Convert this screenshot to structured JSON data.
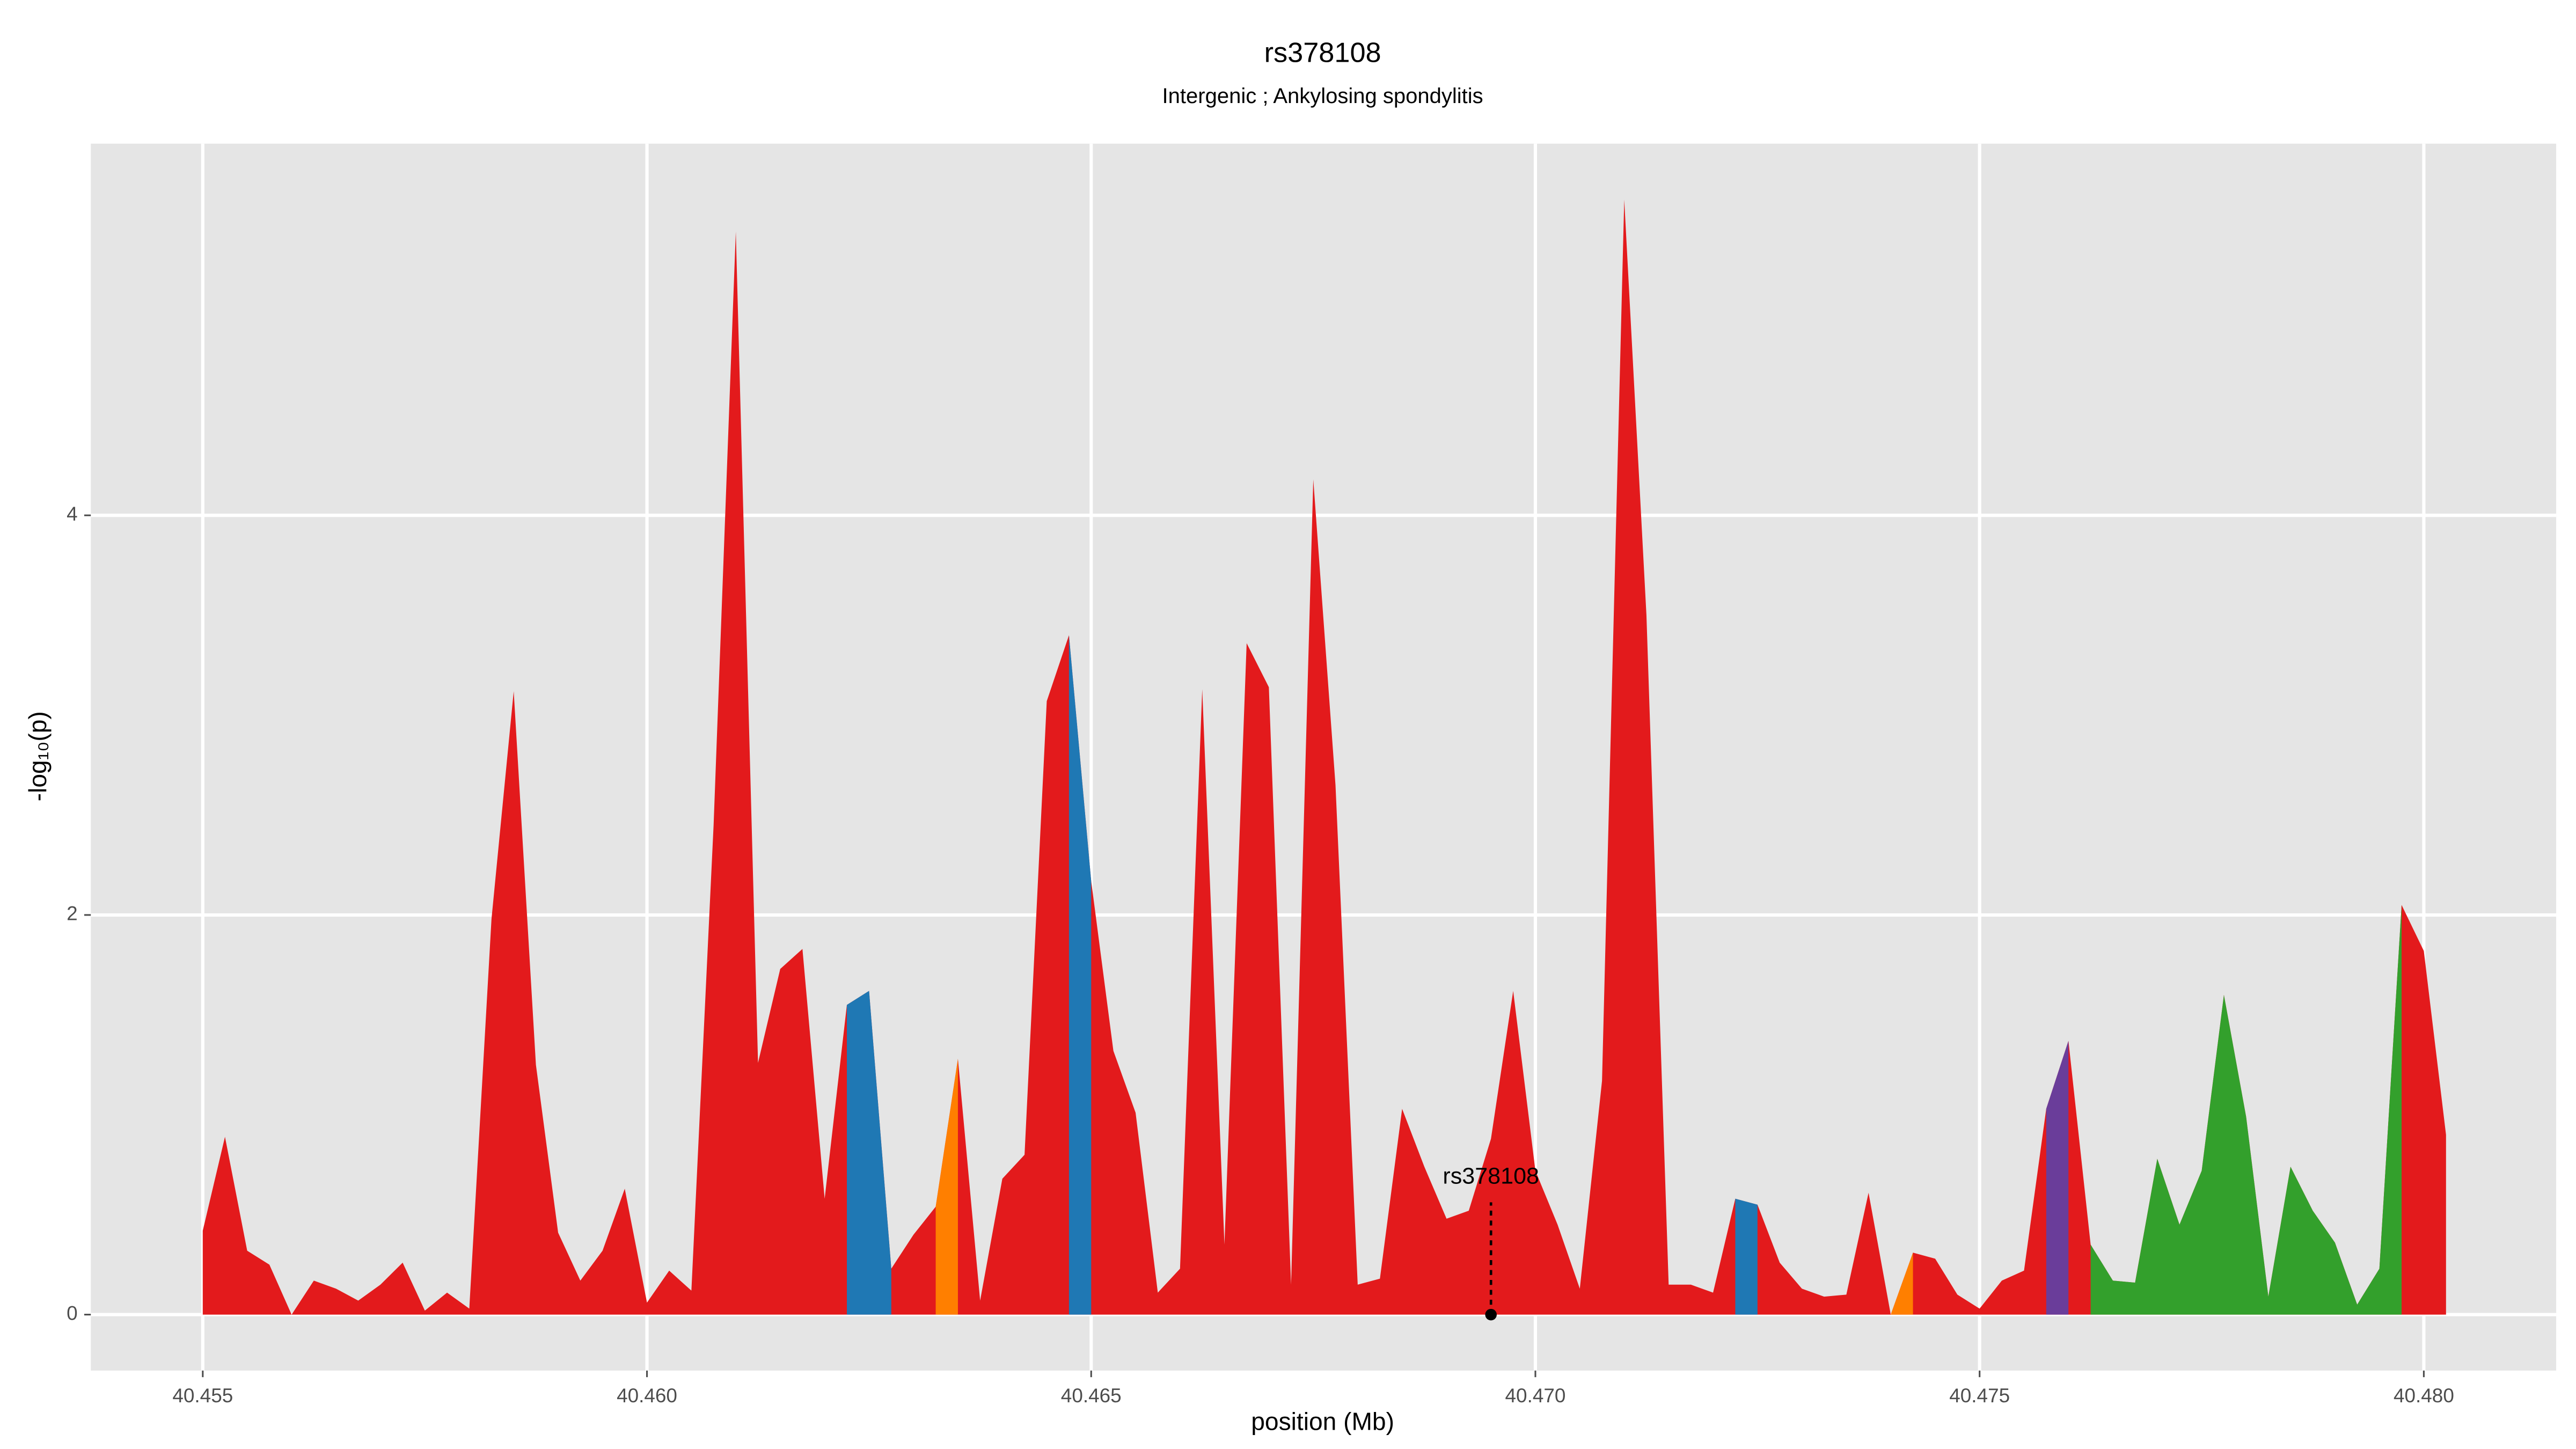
{
  "chart_data": {
    "type": "area",
    "title": "rs378108",
    "subtitle": "Intergenic ; Ankylosing spondylitis",
    "x_label": "position (Mb)",
    "y_label": "-log₁₀(p)",
    "xlim": [
      40.45374,
      40.48149
    ],
    "ylim": [
      -0.28,
      5.86
    ],
    "xticks": [
      40.455,
      {
        "value": 40.46,
        "label": "40.460"
      },
      40.465,
      {
        "value": 40.47,
        "label": "40.470"
      },
      40.475,
      {
        "value": 40.48,
        "label": "40.480"
      }
    ],
    "yticks": [
      0,
      2,
      4
    ],
    "grid": true,
    "x": [
      40.455,
      40.45525,
      40.4555,
      40.45575,
      40.456,
      40.45625,
      40.4565,
      40.45675,
      40.457,
      40.45725,
      40.4575,
      40.45775,
      40.458,
      40.45825,
      40.4585,
      40.45875,
      40.459,
      40.45925,
      40.4595,
      40.45975,
      40.46,
      40.46025,
      40.4605,
      40.46075,
      40.461,
      40.46125,
      40.4615,
      40.46175,
      40.462,
      40.46225,
      40.4625,
      40.46275,
      40.463,
      40.46325,
      40.4635,
      40.46375,
      40.464,
      40.46425,
      40.4645,
      40.46475,
      40.465,
      40.46525,
      40.4655,
      40.46575,
      40.466,
      40.46625,
      40.4665,
      40.46675,
      40.467,
      40.46725,
      40.4675,
      40.46775,
      40.468,
      40.46825,
      40.4685,
      40.46875,
      40.469,
      40.46925,
      40.4695,
      40.46975,
      40.47,
      40.47025,
      40.4705,
      40.47075,
      40.471,
      40.47125,
      40.4715,
      40.47175,
      40.472,
      40.47225,
      40.4725,
      40.47275,
      40.473,
      40.47325,
      40.4735,
      40.47375,
      40.474,
      40.47425,
      40.4745,
      40.47475,
      40.475,
      40.47525,
      40.4755,
      40.47575,
      40.476,
      40.47625,
      40.4765,
      40.47675,
      40.477,
      40.47725,
      40.4775,
      40.47775,
      40.478,
      40.47825,
      40.4785,
      40.47875,
      40.479,
      40.47925,
      40.4795,
      40.47975,
      40.48,
      40.48025
    ],
    "series": [
      {
        "color": "#e31a1c",
        "values": [
          0.42,
          0.89,
          0.32,
          0.25,
          0,
          0.17,
          0.13,
          0.07,
          0.15,
          0.26,
          0.02,
          0.11,
          0.03,
          1.98,
          3.12,
          1.25,
          0.41,
          0.17,
          0.32,
          0.63,
          0.06,
          0.22,
          0.12,
          2.45,
          5.42,
          1.26,
          1.73,
          1.83,
          0.58,
          1.55,
          1.62,
          0.23,
          0.4,
          0.54,
          1.28,
          0.07,
          0.68,
          0.8,
          3.07,
          3.4,
          2.17,
          1.32,
          1.01,
          0.11,
          0.23,
          3.13,
          0.35,
          3.36,
          3.14,
          0.15,
          4.18,
          2.65,
          0.15,
          0.18,
          1.03,
          0.74,
          0.48,
          0.52,
          0.88,
          1.62,
          0.72,
          0.45,
          0.13,
          1.17,
          5.58,
          3.5,
          0.15,
          0.15,
          0.11,
          0.58,
          0.55,
          0.26,
          0.13,
          0.09,
          0.1,
          0.61,
          0,
          0.31,
          0.28,
          0.1,
          0.03,
          0.17,
          0.22,
          1.03,
          1.37,
          0.35,
          0.17,
          0.16,
          0.78,
          0.45,
          0.72,
          1.6,
          0.99,
          0.09,
          0.74,
          0.52,
          0.36,
          0.05,
          0.23,
          2.05,
          1.82,
          0.9
        ]
      },
      {
        "color": "#1f78b4",
        "values": [
          null,
          null,
          null,
          null,
          null,
          null,
          null,
          null,
          null,
          null,
          null,
          null,
          null,
          null,
          null,
          null,
          null,
          null,
          null,
          null,
          null,
          null,
          null,
          null,
          null,
          null,
          null,
          null,
          null,
          1.55,
          1.62,
          0.23,
          null,
          null,
          null,
          null,
          null,
          null,
          null,
          3.4,
          2.17,
          null,
          null,
          null,
          null,
          null,
          null,
          null,
          null,
          null,
          null,
          null,
          null,
          null,
          null,
          null,
          null,
          null,
          null,
          null,
          null,
          null,
          null,
          null,
          null,
          null,
          null,
          null,
          null,
          0.58,
          0.55,
          null,
          null,
          null,
          null,
          null,
          null,
          null,
          null,
          null,
          null,
          null,
          null,
          null,
          null,
          null,
          null,
          null,
          null,
          null,
          null,
          null,
          null,
          null,
          null,
          null,
          null,
          null,
          null,
          null,
          null,
          null
        ]
      },
      {
        "color": "#ff7f00",
        "values": [
          null,
          null,
          null,
          null,
          null,
          null,
          null,
          null,
          null,
          null,
          null,
          null,
          null,
          null,
          null,
          null,
          null,
          null,
          null,
          null,
          null,
          null,
          null,
          null,
          null,
          null,
          null,
          null,
          null,
          null,
          null,
          null,
          null,
          0.54,
          1.28,
          null,
          null,
          null,
          null,
          null,
          null,
          null,
          null,
          null,
          null,
          null,
          null,
          null,
          null,
          null,
          null,
          null,
          null,
          null,
          null,
          null,
          null,
          null,
          null,
          null,
          null,
          null,
          null,
          null,
          null,
          null,
          null,
          null,
          null,
          null,
          null,
          null,
          null,
          null,
          null,
          null,
          0,
          0.31,
          null,
          null,
          null,
          null,
          null,
          null,
          null,
          null,
          null,
          null,
          null,
          null,
          null,
          null,
          null,
          null,
          null,
          null,
          null,
          null,
          null,
          null,
          null,
          null
        ]
      },
      {
        "color": "#6a3d9a",
        "values": [
          null,
          null,
          null,
          null,
          null,
          null,
          null,
          null,
          null,
          null,
          null,
          null,
          null,
          null,
          null,
          null,
          null,
          null,
          null,
          null,
          null,
          null,
          null,
          null,
          null,
          null,
          null,
          null,
          null,
          null,
          null,
          null,
          null,
          null,
          null,
          null,
          null,
          null,
          null,
          null,
          null,
          null,
          null,
          null,
          null,
          null,
          null,
          null,
          null,
          null,
          null,
          null,
          null,
          null,
          null,
          null,
          null,
          null,
          null,
          null,
          null,
          null,
          null,
          null,
          null,
          null,
          null,
          null,
          null,
          null,
          null,
          null,
          null,
          null,
          null,
          null,
          null,
          null,
          null,
          null,
          null,
          null,
          null,
          1.03,
          1.37,
          null,
          null,
          null,
          null,
          null,
          null,
          null,
          null,
          null,
          null,
          null,
          null,
          null,
          null,
          null,
          null,
          null
        ]
      },
      {
        "color": "#33a02c",
        "values": [
          null,
          null,
          null,
          null,
          null,
          null,
          null,
          null,
          null,
          null,
          null,
          null,
          null,
          null,
          null,
          null,
          null,
          null,
          null,
          null,
          null,
          null,
          null,
          null,
          null,
          null,
          null,
          null,
          null,
          null,
          null,
          null,
          null,
          null,
          null,
          null,
          null,
          null,
          null,
          null,
          null,
          null,
          null,
          null,
          null,
          null,
          null,
          null,
          null,
          null,
          null,
          null,
          null,
          null,
          null,
          null,
          null,
          null,
          null,
          null,
          null,
          null,
          null,
          null,
          null,
          null,
          null,
          null,
          null,
          null,
          null,
          null,
          null,
          null,
          null,
          null,
          null,
          null,
          null,
          null,
          null,
          null,
          null,
          null,
          null,
          0.35,
          0.17,
          0.16,
          0.78,
          0.45,
          0.72,
          1.6,
          0.99,
          0.09,
          0.74,
          0.52,
          0.36,
          0.05,
          0.23,
          2.05,
          null,
          null
        ]
      }
    ],
    "annotation": {
      "text": "rs378108",
      "x": 40.4695,
      "y": 0
    }
  }
}
